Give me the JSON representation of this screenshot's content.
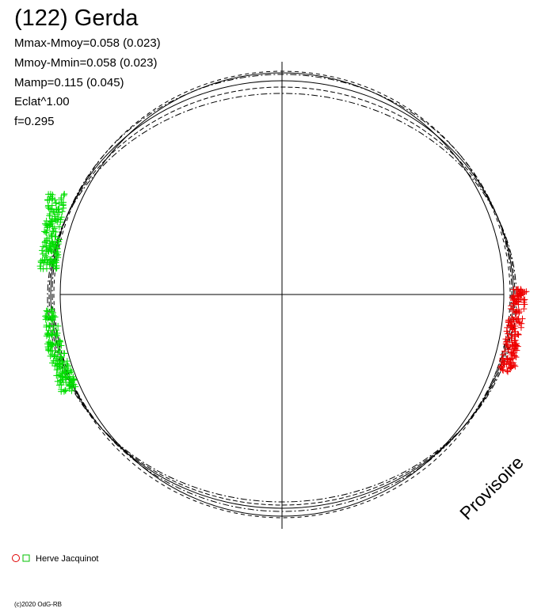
{
  "header": {
    "title": "(122) Gerda",
    "stats": [
      "Mmax-Mmoy=0.058 (0.023)",
      "Mmoy-Mmin=0.058 (0.023)",
      "Mamp=0.115 (0.045)",
      "Eclat^1.00",
      "f=0.295"
    ]
  },
  "watermark": "Provisoire",
  "legend": {
    "observer": "Herve Jacquinot"
  },
  "footer": {
    "copyright": "(c)2020 OdG-RB"
  }
}
